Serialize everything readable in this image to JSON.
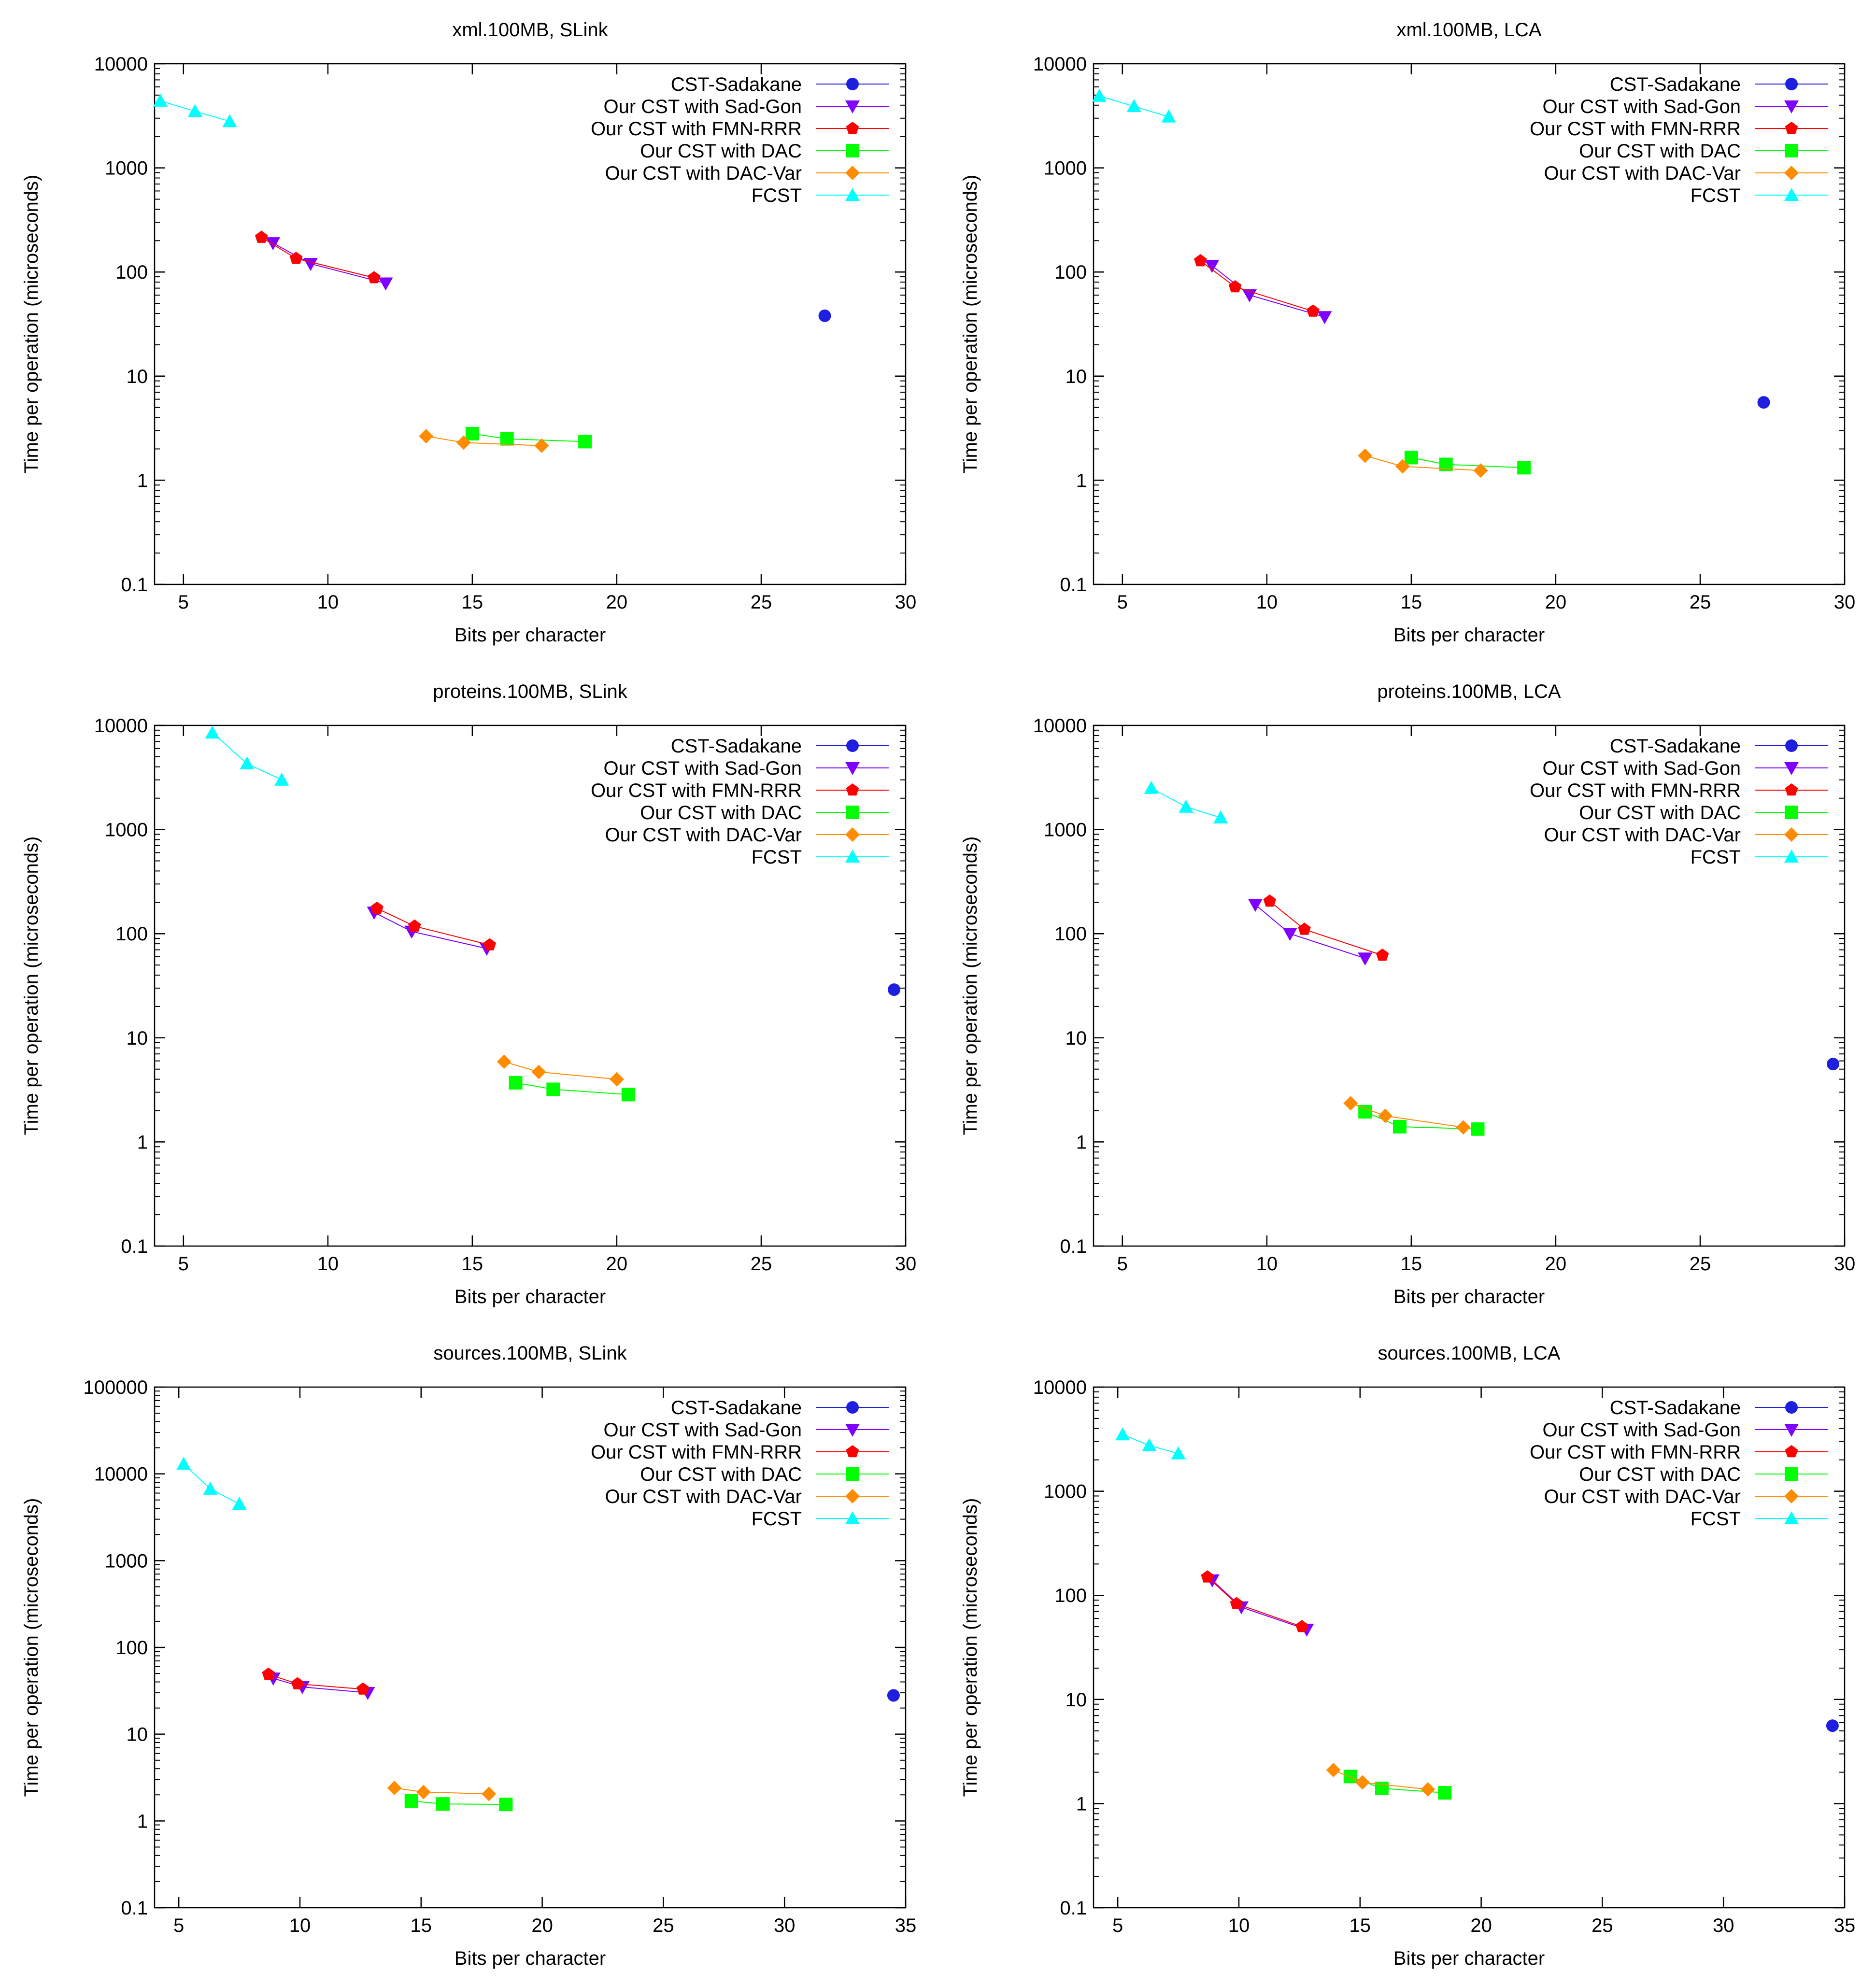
{
  "figure": {
    "chart_count": 6,
    "colors": {
      "CST-Sadakane": "#1f1fe0",
      "Our CST with Sad-Gon": "#8000ff",
      "Our CST with FMN-RRR": "#ff0000",
      "Our CST with DAC": "#00ff00",
      "Our CST with DAC-Var": "#ff8c00",
      "FCST": "#00ffff"
    }
  },
  "chart_data": [
    {
      "type": "line",
      "title": "xml.100MB, SLink",
      "xlabel": "Bits per character",
      "ylabel": "Time per operation (microseconds)",
      "xscale": "linear",
      "yscale": "log",
      "xlim": [
        4,
        30
      ],
      "ylim": [
        0.1,
        10000
      ],
      "xticks": [
        5,
        10,
        15,
        20,
        25,
        30
      ],
      "yticks": [
        0.1,
        1,
        10,
        100,
        1000,
        10000
      ],
      "legend": "top-right",
      "series": [
        {
          "name": "CST-Sadakane",
          "marker": "circle",
          "points": [
            [
              27.2,
              38
            ]
          ]
        },
        {
          "name": "Our CST with Sad-Gon",
          "marker": "triangle-down",
          "points": [
            [
              8.1,
              190
            ],
            [
              9.4,
              120
            ],
            [
              12.0,
              78
            ]
          ]
        },
        {
          "name": "Our CST with FMN-RRR",
          "marker": "pentagon",
          "points": [
            [
              7.7,
              215
            ],
            [
              8.9,
              135
            ],
            [
              11.6,
              88
            ]
          ]
        },
        {
          "name": "Our CST with DAC",
          "marker": "square",
          "points": [
            [
              15.0,
              2.8
            ],
            [
              16.2,
              2.5
            ],
            [
              18.9,
              2.35
            ]
          ]
        },
        {
          "name": "Our CST with DAC-Var",
          "marker": "diamond",
          "points": [
            [
              13.4,
              2.65
            ],
            [
              14.7,
              2.3
            ],
            [
              17.4,
              2.15
            ]
          ]
        },
        {
          "name": "FCST",
          "marker": "triangle-up",
          "points": [
            [
              4.2,
              4400
            ],
            [
              5.4,
              3500
            ],
            [
              6.6,
              2800
            ]
          ]
        }
      ]
    },
    {
      "type": "line",
      "title": "xml.100MB, LCA",
      "xlabel": "Bits per character",
      "ylabel": "Time per operation (microseconds)",
      "xscale": "linear",
      "yscale": "log",
      "xlim": [
        4,
        30
      ],
      "ylim": [
        0.1,
        10000
      ],
      "xticks": [
        5,
        10,
        15,
        20,
        25,
        30
      ],
      "yticks": [
        0.1,
        1,
        10,
        100,
        1000,
        10000
      ],
      "legend": "top-right",
      "series": [
        {
          "name": "CST-Sadakane",
          "marker": "circle",
          "points": [
            [
              27.2,
              5.6
            ]
          ]
        },
        {
          "name": "Our CST with Sad-Gon",
          "marker": "triangle-down",
          "points": [
            [
              8.1,
              115
            ],
            [
              9.4,
              60
            ],
            [
              12.0,
              37
            ]
          ]
        },
        {
          "name": "Our CST with FMN-RRR",
          "marker": "pentagon",
          "points": [
            [
              7.7,
              128
            ],
            [
              8.9,
              72
            ],
            [
              11.6,
              42
            ]
          ]
        },
        {
          "name": "Our CST with DAC",
          "marker": "square",
          "points": [
            [
              15.0,
              1.65
            ],
            [
              16.2,
              1.42
            ],
            [
              18.9,
              1.32
            ]
          ]
        },
        {
          "name": "Our CST with DAC-Var",
          "marker": "diamond",
          "points": [
            [
              13.4,
              1.72
            ],
            [
              14.7,
              1.36
            ],
            [
              17.4,
              1.24
            ]
          ]
        },
        {
          "name": "FCST",
          "marker": "triangle-up",
          "points": [
            [
              4.2,
              4900
            ],
            [
              5.4,
              3900
            ],
            [
              6.6,
              3100
            ]
          ]
        }
      ]
    },
    {
      "type": "line",
      "title": "proteins.100MB, SLink",
      "xlabel": "Bits per character",
      "ylabel": "Time per operation (microseconds)",
      "xscale": "linear",
      "yscale": "log",
      "xlim": [
        4,
        30
      ],
      "ylim": [
        0.1,
        10000
      ],
      "xticks": [
        5,
        10,
        15,
        20,
        25,
        30
      ],
      "yticks": [
        0.1,
        1,
        10,
        100,
        1000,
        10000
      ],
      "legend": "top-right",
      "series": [
        {
          "name": "CST-Sadakane",
          "marker": "circle",
          "points": [
            [
              29.6,
              29
            ]
          ]
        },
        {
          "name": "Our CST with Sad-Gon",
          "marker": "triangle-down",
          "points": [
            [
              11.6,
              160
            ],
            [
              12.9,
              105
            ],
            [
              15.5,
              72
            ]
          ]
        },
        {
          "name": "Our CST with FMN-RRR",
          "marker": "pentagon",
          "points": [
            [
              11.7,
              175
            ],
            [
              13.0,
              118
            ],
            [
              15.6,
              78
            ]
          ]
        },
        {
          "name": "Our CST with DAC",
          "marker": "square",
          "points": [
            [
              16.5,
              3.7
            ],
            [
              17.8,
              3.2
            ],
            [
              20.4,
              2.85
            ]
          ]
        },
        {
          "name": "Our CST with DAC-Var",
          "marker": "diamond",
          "points": [
            [
              16.1,
              5.9
            ],
            [
              17.3,
              4.7
            ],
            [
              20.0,
              4.0
            ]
          ]
        },
        {
          "name": "FCST",
          "marker": "triangle-up",
          "points": [
            [
              6.0,
              8500
            ],
            [
              7.2,
              4300
            ],
            [
              8.4,
              3000
            ]
          ]
        }
      ]
    },
    {
      "type": "line",
      "title": "proteins.100MB, LCA",
      "xlabel": "Bits per character",
      "ylabel": "Time per operation (microseconds)",
      "xscale": "linear",
      "yscale": "log",
      "xlim": [
        4,
        30
      ],
      "ylim": [
        0.1,
        10000
      ],
      "xticks": [
        5,
        10,
        15,
        20,
        25,
        30
      ],
      "yticks": [
        0.1,
        1,
        10,
        100,
        1000,
        10000
      ],
      "legend": "top-right",
      "series": [
        {
          "name": "CST-Sadakane",
          "marker": "circle",
          "points": [
            [
              29.6,
              5.6
            ]
          ]
        },
        {
          "name": "Our CST with Sad-Gon",
          "marker": "triangle-down",
          "points": [
            [
              9.6,
              190
            ],
            [
              10.8,
              100
            ],
            [
              13.4,
              58
            ]
          ]
        },
        {
          "name": "Our CST with FMN-RRR",
          "marker": "pentagon",
          "points": [
            [
              10.1,
              205
            ],
            [
              11.3,
              110
            ],
            [
              14.0,
              62
            ]
          ]
        },
        {
          "name": "Our CST with DAC",
          "marker": "square",
          "points": [
            [
              13.4,
              1.95
            ],
            [
              14.6,
              1.4
            ],
            [
              17.3,
              1.33
            ]
          ]
        },
        {
          "name": "Our CST with DAC-Var",
          "marker": "diamond",
          "points": [
            [
              12.9,
              2.35
            ],
            [
              14.1,
              1.78
            ],
            [
              16.8,
              1.38
            ]
          ]
        },
        {
          "name": "FCST",
          "marker": "triangle-up",
          "points": [
            [
              6.0,
              2500
            ],
            [
              7.2,
              1650
            ],
            [
              8.4,
              1300
            ]
          ]
        }
      ]
    },
    {
      "type": "line",
      "title": "sources.100MB, SLink",
      "xlabel": "Bits per character",
      "ylabel": "Time per operation (microseconds)",
      "xscale": "linear",
      "yscale": "log",
      "xlim": [
        4,
        35
      ],
      "ylim": [
        0.1,
        100000
      ],
      "xticks": [
        5,
        10,
        15,
        20,
        25,
        30,
        35
      ],
      "yticks": [
        0.1,
        1,
        10,
        100,
        1000,
        10000,
        100000
      ],
      "legend": "top-right",
      "series": [
        {
          "name": "CST-Sadakane",
          "marker": "circle",
          "points": [
            [
              34.5,
              28
            ]
          ]
        },
        {
          "name": "Our CST with Sad-Gon",
          "marker": "triangle-down",
          "points": [
            [
              8.9,
              44
            ],
            [
              10.1,
              35
            ],
            [
              12.8,
              30
            ]
          ]
        },
        {
          "name": "Our CST with FMN-RRR",
          "marker": "pentagon",
          "points": [
            [
              8.7,
              49
            ],
            [
              9.9,
              38
            ],
            [
              12.6,
              33
            ]
          ]
        },
        {
          "name": "Our CST with DAC",
          "marker": "square",
          "points": [
            [
              14.6,
              1.7
            ],
            [
              15.9,
              1.57
            ],
            [
              18.5,
              1.55
            ]
          ]
        },
        {
          "name": "Our CST with DAC-Var",
          "marker": "diamond",
          "points": [
            [
              13.9,
              2.4
            ],
            [
              15.1,
              2.15
            ],
            [
              17.8,
              2.05
            ]
          ]
        },
        {
          "name": "FCST",
          "marker": "triangle-up",
          "points": [
            [
              5.2,
              13000
            ],
            [
              6.3,
              6700
            ],
            [
              7.5,
              4500
            ]
          ]
        }
      ]
    },
    {
      "type": "line",
      "title": "sources.100MB, LCA",
      "xlabel": "Bits per character",
      "ylabel": "Time per operation (microseconds)",
      "xscale": "linear",
      "yscale": "log",
      "xlim": [
        4,
        35
      ],
      "ylim": [
        0.1,
        10000
      ],
      "xticks": [
        5,
        10,
        15,
        20,
        25,
        30,
        35
      ],
      "yticks": [
        0.1,
        1,
        10,
        100,
        1000,
        10000
      ],
      "legend": "top-right",
      "series": [
        {
          "name": "CST-Sadakane",
          "marker": "circle",
          "points": [
            [
              34.5,
              5.6
            ]
          ]
        },
        {
          "name": "Our CST with Sad-Gon",
          "marker": "triangle-down",
          "points": [
            [
              8.9,
              140
            ],
            [
              10.1,
              77
            ],
            [
              12.8,
              47
            ]
          ]
        },
        {
          "name": "Our CST with FMN-RRR",
          "marker": "pentagon",
          "points": [
            [
              8.7,
              150
            ],
            [
              9.9,
              83
            ],
            [
              12.6,
              50
            ]
          ]
        },
        {
          "name": "Our CST with DAC",
          "marker": "square",
          "points": [
            [
              14.6,
              1.82
            ],
            [
              15.9,
              1.4
            ],
            [
              18.5,
              1.27
            ]
          ]
        },
        {
          "name": "Our CST with DAC-Var",
          "marker": "diamond",
          "points": [
            [
              13.9,
              2.1
            ],
            [
              15.1,
              1.6
            ],
            [
              17.8,
              1.37
            ]
          ]
        },
        {
          "name": "FCST",
          "marker": "triangle-up",
          "points": [
            [
              5.2,
              3500
            ],
            [
              6.3,
              2750
            ],
            [
              7.5,
              2300
            ]
          ]
        }
      ]
    }
  ]
}
